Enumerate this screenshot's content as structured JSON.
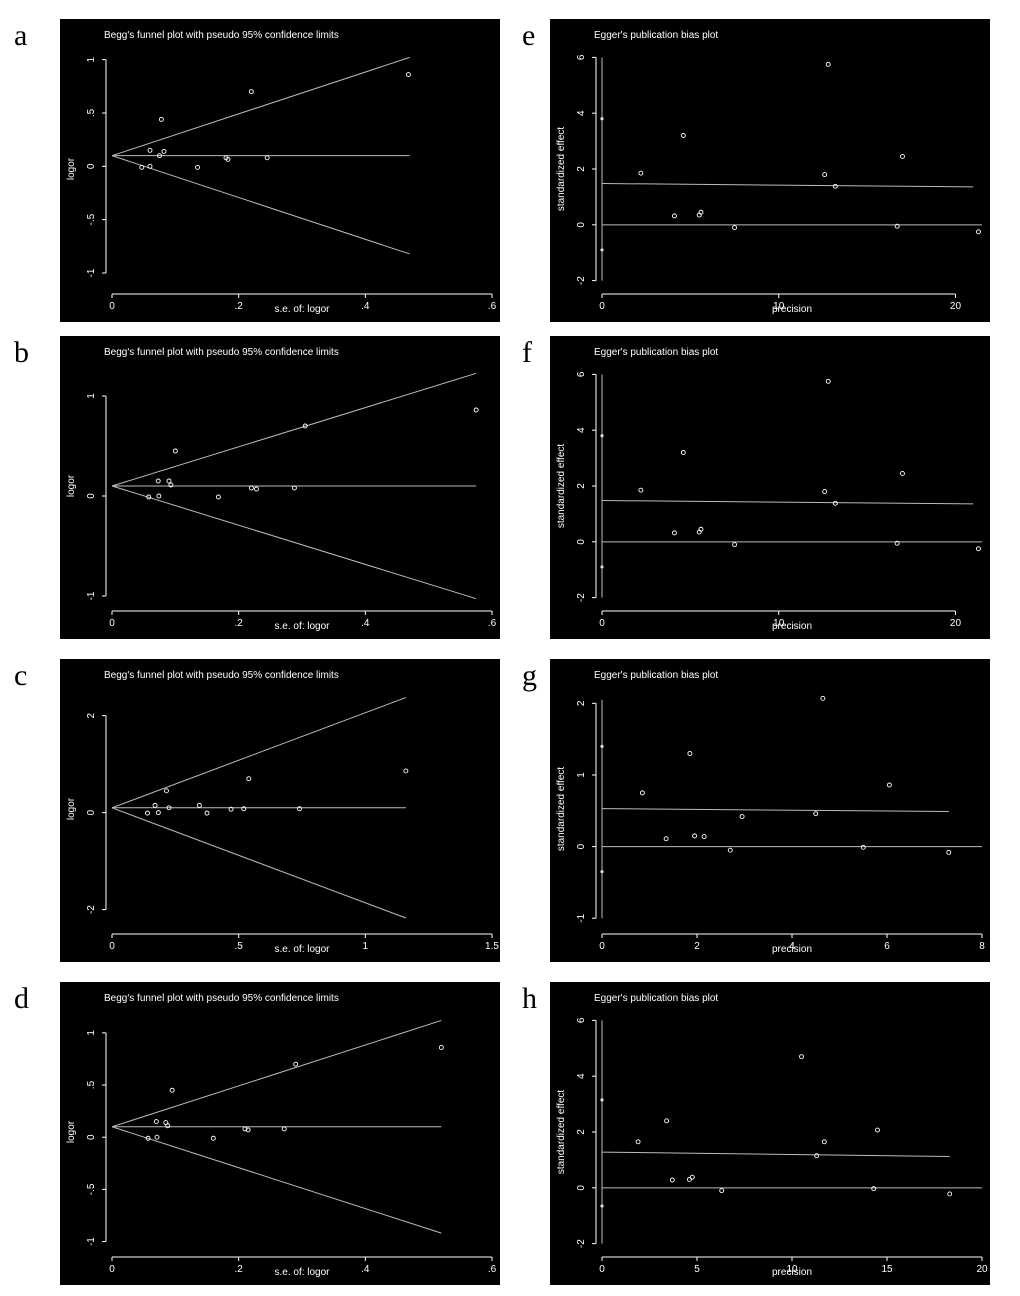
{
  "chart_data": [
    {
      "letter": "a",
      "type": "scatter",
      "kind": "begg",
      "title": "Begg's funnel plot with pseudo 95% confidence limits",
      "xlabel": "s.e. of: logor",
      "ylabel": "logor",
      "xlim": [
        0,
        0.6
      ],
      "ylim": [
        -1.15,
        1.1
      ],
      "xticks": [
        0,
        0.2,
        0.4,
        0.6
      ],
      "xtick_labels": [
        "0",
        ".2",
        ".4",
        ".6"
      ],
      "yticks": [
        -1,
        -0.5,
        0,
        0.5,
        1
      ],
      "ytick_labels": [
        "-1",
        "-.5",
        "0",
        ".5",
        "1"
      ],
      "pooled": 0.1,
      "funnel_xmax": 0.47,
      "points": [
        [
          0.047,
          -0.01
        ],
        [
          0.06,
          0.15
        ],
        [
          0.06,
          0.0
        ],
        [
          0.075,
          0.1
        ],
        [
          0.078,
          0.44
        ],
        [
          0.082,
          0.14
        ],
        [
          0.135,
          -0.01
        ],
        [
          0.18,
          0.08
        ],
        [
          0.183,
          0.065
        ],
        [
          0.22,
          0.7
        ],
        [
          0.245,
          0.08
        ],
        [
          0.468,
          0.86
        ]
      ]
    },
    {
      "letter": "b",
      "type": "scatter",
      "kind": "begg",
      "title": "Begg's funnel plot with pseudo 95% confidence limits",
      "xlabel": "s.e. of: logor",
      "ylabel": "logor",
      "xlim": [
        0,
        0.6
      ],
      "ylim": [
        -1.1,
        1.3
      ],
      "xticks": [
        0,
        0.2,
        0.4,
        0.6
      ],
      "xtick_labels": [
        "0",
        ".2",
        ".4",
        ".6"
      ],
      "yticks": [
        -1,
        0,
        1
      ],
      "ytick_labels": [
        "-1",
        "0",
        "1"
      ],
      "pooled": 0.1,
      "funnel_xmax": 0.575,
      "points": [
        [
          0.058,
          -0.01
        ],
        [
          0.073,
          0.15
        ],
        [
          0.074,
          0.0
        ],
        [
          0.09,
          0.15
        ],
        [
          0.093,
          0.11
        ],
        [
          0.1,
          0.45
        ],
        [
          0.168,
          -0.01
        ],
        [
          0.22,
          0.08
        ],
        [
          0.228,
          0.07
        ],
        [
          0.288,
          0.08
        ],
        [
          0.305,
          0.7
        ],
        [
          0.575,
          0.86
        ]
      ]
    },
    {
      "letter": "c",
      "type": "scatter",
      "kind": "begg",
      "title": "Begg's funnel plot with pseudo 95% confidence limits",
      "xlabel": "s.e. of: logor",
      "ylabel": "logor",
      "xlim": [
        0,
        1.5
      ],
      "ylim": [
        -2.4,
        2.55
      ],
      "xticks": [
        0,
        0.5,
        1,
        1.5
      ],
      "xtick_labels": [
        "0",
        ".5",
        "1",
        "1.5"
      ],
      "yticks": [
        -2,
        0,
        2
      ],
      "ytick_labels": [
        "-2",
        "0",
        "2"
      ],
      "pooled": 0.1,
      "funnel_xmax": 1.16,
      "points": [
        [
          0.14,
          -0.01
        ],
        [
          0.17,
          0.15
        ],
        [
          0.183,
          0.0
        ],
        [
          0.215,
          0.45
        ],
        [
          0.225,
          0.1
        ],
        [
          0.345,
          0.15
        ],
        [
          0.375,
          -0.01
        ],
        [
          0.47,
          0.07
        ],
        [
          0.52,
          0.08
        ],
        [
          0.54,
          0.7
        ],
        [
          0.74,
          0.08
        ],
        [
          1.16,
          0.86
        ]
      ]
    },
    {
      "letter": "d",
      "type": "scatter",
      "kind": "begg",
      "title": "Begg's funnel plot with pseudo 95% confidence limits",
      "xlabel": "s.e. of: logor",
      "ylabel": "logor",
      "xlim": [
        0,
        0.6
      ],
      "ylim": [
        -1.1,
        1.2
      ],
      "xticks": [
        0,
        0.2,
        0.4,
        0.6
      ],
      "xtick_labels": [
        "0",
        ".2",
        ".4",
        ".6"
      ],
      "yticks": [
        -1,
        -0.5,
        0,
        0.5,
        1
      ],
      "ytick_labels": [
        "-1",
        "-.5",
        "0",
        ".5",
        "1"
      ],
      "pooled": 0.1,
      "funnel_xmax": 0.52,
      "points": [
        [
          0.057,
          -0.01
        ],
        [
          0.07,
          0.15
        ],
        [
          0.071,
          0.0
        ],
        [
          0.085,
          0.14
        ],
        [
          0.088,
          0.11
        ],
        [
          0.095,
          0.45
        ],
        [
          0.16,
          -0.01
        ],
        [
          0.21,
          0.08
        ],
        [
          0.215,
          0.07
        ],
        [
          0.272,
          0.08
        ],
        [
          0.29,
          0.7
        ],
        [
          0.52,
          0.86
        ]
      ]
    },
    {
      "letter": "e",
      "type": "scatter",
      "kind": "egger",
      "title": "Egger's publication bias plot",
      "xlabel": "precision",
      "ylabel": "standardized effect",
      "xlim": [
        0,
        21.5
      ],
      "ylim": [
        -2.3,
        6.3
      ],
      "xticks": [
        0,
        10,
        20
      ],
      "xtick_labels": [
        "0",
        "10",
        "20"
      ],
      "yticks": [
        -2,
        0,
        2,
        4,
        6
      ],
      "ytick_labels": [
        "-2",
        "0",
        "2",
        "4",
        "6"
      ],
      "intercept_ci": [
        -2.0,
        6.0
      ],
      "intercept": 3.8,
      "intercept_ci_marks": [
        -0.9
      ],
      "fit_line": [
        [
          0,
          1.48
        ],
        [
          21,
          1.36
        ]
      ],
      "points": [
        [
          2.2,
          1.85
        ],
        [
          4.1,
          0.32
        ],
        [
          4.6,
          3.2
        ],
        [
          5.5,
          0.35
        ],
        [
          5.6,
          0.45
        ],
        [
          7.5,
          -0.1
        ],
        [
          12.6,
          1.8
        ],
        [
          12.8,
          5.75
        ],
        [
          13.2,
          1.38
        ],
        [
          16.7,
          -0.05
        ],
        [
          17.0,
          2.45
        ],
        [
          21.3,
          -0.25
        ]
      ]
    },
    {
      "letter": "f",
      "type": "scatter",
      "kind": "egger",
      "title": "Egger's publication bias plot",
      "xlabel": "precision",
      "ylabel": "standardized effect",
      "xlim": [
        0,
        21.5
      ],
      "ylim": [
        -2.3,
        6.3
      ],
      "xticks": [
        0,
        10,
        20
      ],
      "xtick_labels": [
        "0",
        "10",
        "20"
      ],
      "yticks": [
        -2,
        0,
        2,
        4,
        6
      ],
      "ytick_labels": [
        "-2",
        "0",
        "2",
        "4",
        "6"
      ],
      "intercept_ci": [
        -2.0,
        6.0
      ],
      "intercept": 3.8,
      "intercept_ci_marks": [
        -0.9
      ],
      "fit_line": [
        [
          0,
          1.48
        ],
        [
          21,
          1.36
        ]
      ],
      "points": [
        [
          2.2,
          1.85
        ],
        [
          4.1,
          0.32
        ],
        [
          4.6,
          3.2
        ],
        [
          5.5,
          0.35
        ],
        [
          5.6,
          0.45
        ],
        [
          7.5,
          -0.1
        ],
        [
          12.6,
          1.8
        ],
        [
          12.8,
          5.75
        ],
        [
          13.2,
          1.38
        ],
        [
          16.7,
          -0.05
        ],
        [
          17.0,
          2.45
        ],
        [
          21.3,
          -0.25
        ]
      ]
    },
    {
      "letter": "g",
      "type": "scatter",
      "kind": "egger",
      "title": "Egger's publication bias plot",
      "xlabel": "precision",
      "ylabel": "standardized effect",
      "xlim": [
        0,
        8
      ],
      "ylim": [
        -1.15,
        2.2
      ],
      "xticks": [
        0,
        2,
        4,
        6,
        8
      ],
      "xtick_labels": [
        "0",
        "2",
        "4",
        "6",
        "8"
      ],
      "yticks": [
        -1,
        0,
        1,
        2
      ],
      "ytick_labels": [
        "-1",
        "0",
        "1",
        "2"
      ],
      "intercept_ci": [
        -1.0,
        2.05
      ],
      "intercept": 1.4,
      "intercept_ci_marks": [
        -0.35
      ],
      "fit_line": [
        [
          0,
          0.53
        ],
        [
          7.3,
          0.49
        ]
      ],
      "points": [
        [
          0.85,
          0.75
        ],
        [
          1.35,
          0.11
        ],
        [
          1.85,
          1.3
        ],
        [
          1.95,
          0.15
        ],
        [
          2.15,
          0.14
        ],
        [
          2.7,
          -0.05
        ],
        [
          2.95,
          0.42
        ],
        [
          4.5,
          0.46
        ],
        [
          4.65,
          2.07
        ],
        [
          5.5,
          -0.01
        ],
        [
          6.05,
          0.86
        ],
        [
          7.3,
          -0.08
        ]
      ]
    },
    {
      "letter": "h",
      "type": "scatter",
      "kind": "egger",
      "title": "Egger's publication bias plot",
      "xlabel": "precision",
      "ylabel": "standardized effect",
      "xlim": [
        0,
        20
      ],
      "ylim": [
        -2.3,
        6.3
      ],
      "xticks": [
        0,
        5,
        10,
        15,
        20
      ],
      "xtick_labels": [
        "0",
        "5",
        "10",
        "15",
        "20"
      ],
      "yticks": [
        -2,
        0,
        2,
        4,
        6
      ],
      "ytick_labels": [
        "-2",
        "0",
        "2",
        "4",
        "6"
      ],
      "intercept_ci": [
        -2.0,
        6.0
      ],
      "intercept": 3.15,
      "intercept_ci_marks": [
        -0.65
      ],
      "fit_line": [
        [
          0,
          1.28
        ],
        [
          18.3,
          1.12
        ]
      ],
      "points": [
        [
          1.9,
          1.65
        ],
        [
          3.4,
          2.4
        ],
        [
          3.7,
          0.28
        ],
        [
          4.6,
          0.3
        ],
        [
          4.75,
          0.38
        ],
        [
          6.3,
          -0.1
        ],
        [
          10.5,
          4.7
        ],
        [
          11.3,
          1.15
        ],
        [
          11.7,
          1.65
        ],
        [
          14.3,
          -0.03
        ],
        [
          14.5,
          2.07
        ],
        [
          18.3,
          -0.22
        ]
      ]
    }
  ]
}
